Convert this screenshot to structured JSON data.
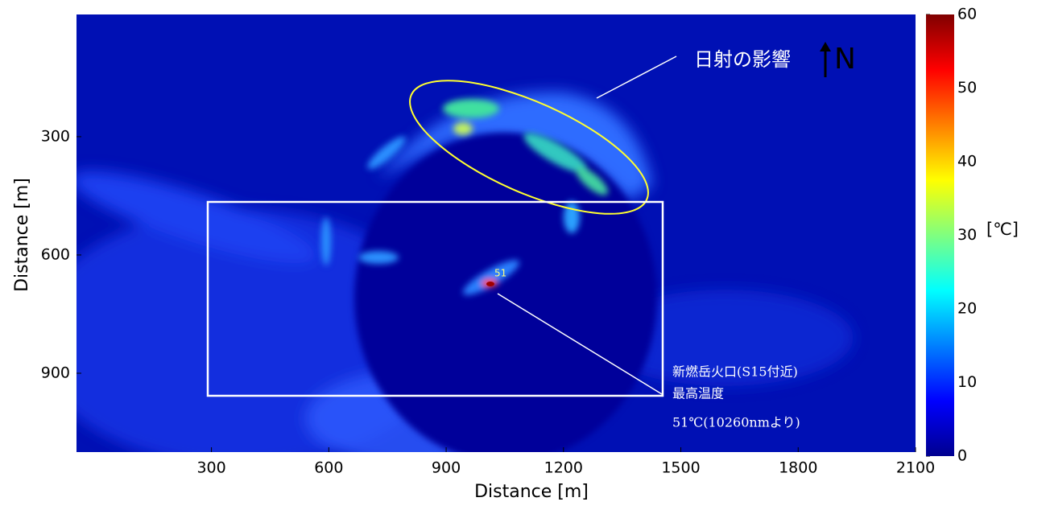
{
  "chart_data": {
    "type": "image",
    "xlabel": "Distance [m]",
    "ylabel": "Distance [m]",
    "xlim": [
      -45,
      2100
    ],
    "xticks": [
      300,
      600,
      900,
      1200,
      1500,
      1800,
      2100
    ],
    "ylim": [
      -10,
      1100
    ],
    "yticks": [
      300,
      600,
      900
    ],
    "colorbar": {
      "label": "[℃]",
      "lim": [
        0,
        60
      ],
      "ticks": [
        0,
        10,
        20,
        30,
        40,
        50,
        60
      ]
    },
    "annotations": {
      "sun": "日射の影響",
      "north": "N",
      "peak": "51",
      "crater": [
        "新燃岳火口(S15付近)",
        "最高温度",
        "51℃(10260nmより)"
      ]
    }
  }
}
